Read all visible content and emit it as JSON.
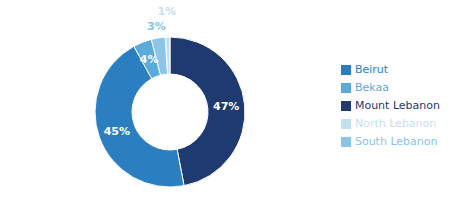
{
  "chart_data": {
    "type": "pie",
    "categories": [
      "Mount Lebanon",
      "Beirut",
      "Bekaa",
      "South Lebanon",
      "North Lebanon"
    ],
    "values": [
      47,
      45,
      4,
      3,
      1
    ],
    "value_labels": [
      "47%",
      "45%",
      "4%",
      "3%",
      "1%"
    ],
    "colors": [
      "#1e3a70",
      "#2b7fc1",
      "#5aabda",
      "#8ac4e8",
      "#c5dff2"
    ],
    "data_labels": true,
    "legend": "right"
  }
}
